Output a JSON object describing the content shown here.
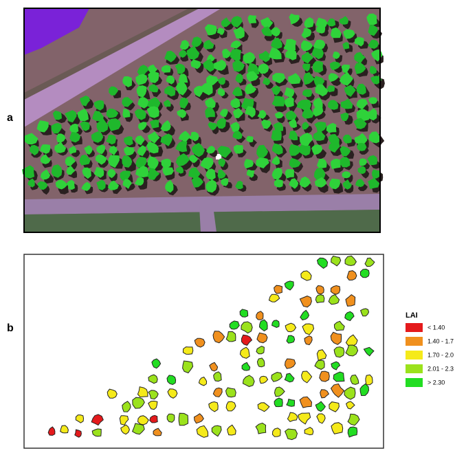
{
  "panels": {
    "a": {
      "label": "a"
    },
    "b": {
      "label": "b"
    }
  },
  "legend": {
    "title": "LAI",
    "items": [
      {
        "label": "< 1.40",
        "color": "#e41a1c"
      },
      {
        "label": "1.40 - 1.7",
        "color": "#f0901e"
      },
      {
        "label": "1.70 - 2.0",
        "color": "#f5ea1a"
      },
      {
        "label": "2.01 - 2.3",
        "color": "#9be21c"
      },
      {
        "label": "> 2.30",
        "color": "#22dd22"
      }
    ]
  }
}
